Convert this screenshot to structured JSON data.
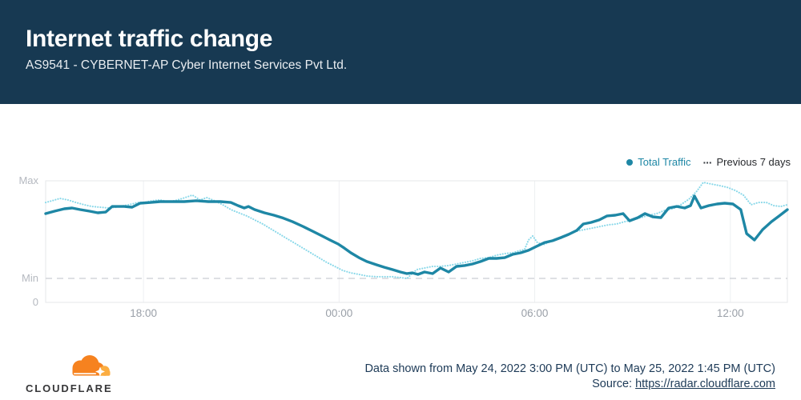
{
  "header": {
    "title": "Internet traffic change",
    "subtitle": "AS9541 - CYBERNET-AP Cyber Internet Services Pvt Ltd.",
    "background_color": "#173952"
  },
  "legend": {
    "total_traffic": {
      "label": "Total Traffic",
      "color": "#1e87a5",
      "marker": "dot"
    },
    "previous_7_days": {
      "label": "Previous 7 days",
      "color": "#3c3f45",
      "marker_glyph": "···"
    }
  },
  "chart_data": {
    "type": "line",
    "y_axis": {
      "max_label": "Max",
      "min_label": "Min",
      "zero_label": "0",
      "scale": "relative traffic, 0 to Max",
      "min_level": 0.197
    },
    "x_axis": {
      "duration_hours": 22.75,
      "ticks": [
        {
          "hour": 3,
          "label": "18:00"
        },
        {
          "hour": 9,
          "label": "00:00"
        },
        {
          "hour": 15,
          "label": "06:00"
        },
        {
          "hour": 21,
          "label": "12:00"
        }
      ]
    },
    "series": [
      {
        "name": "Previous 7 days",
        "style": "dotted",
        "color": "#89d8e9",
        "points": [
          [
            0,
            0.822
          ],
          [
            0.2,
            0.836
          ],
          [
            0.44,
            0.855
          ],
          [
            0.69,
            0.842
          ],
          [
            0.93,
            0.822
          ],
          [
            1.18,
            0.803
          ],
          [
            1.42,
            0.789
          ],
          [
            1.67,
            0.783
          ],
          [
            1.92,
            0.776
          ],
          [
            2.16,
            0.783
          ],
          [
            2.41,
            0.796
          ],
          [
            2.65,
            0.809
          ],
          [
            2.83,
            0.822
          ],
          [
            3.02,
            0.822
          ],
          [
            3.27,
            0.836
          ],
          [
            3.51,
            0.842
          ],
          [
            3.76,
            0.829
          ],
          [
            3.96,
            0.836
          ],
          [
            4.2,
            0.855
          ],
          [
            4.5,
            0.882
          ],
          [
            4.74,
            0.842
          ],
          [
            4.94,
            0.862
          ],
          [
            5.18,
            0.836
          ],
          [
            5.43,
            0.803
          ],
          [
            5.68,
            0.763
          ],
          [
            5.92,
            0.737
          ],
          [
            6.17,
            0.711
          ],
          [
            6.41,
            0.678
          ],
          [
            6.66,
            0.645
          ],
          [
            6.9,
            0.605
          ],
          [
            7.15,
            0.566
          ],
          [
            7.39,
            0.526
          ],
          [
            7.64,
            0.487
          ],
          [
            7.89,
            0.447
          ],
          [
            8.13,
            0.408
          ],
          [
            8.38,
            0.368
          ],
          [
            8.62,
            0.329
          ],
          [
            8.87,
            0.296
          ],
          [
            9.11,
            0.263
          ],
          [
            9.36,
            0.243
          ],
          [
            9.61,
            0.23
          ],
          [
            9.85,
            0.217
          ],
          [
            10.15,
            0.211
          ],
          [
            10.39,
            0.211
          ],
          [
            10.64,
            0.211
          ],
          [
            10.88,
            0.204
          ],
          [
            11.08,
            0.197
          ],
          [
            11.38,
            0.27
          ],
          [
            11.62,
            0.283
          ],
          [
            11.87,
            0.296
          ],
          [
            12.11,
            0.296
          ],
          [
            12.36,
            0.303
          ],
          [
            12.6,
            0.316
          ],
          [
            12.85,
            0.329
          ],
          [
            13.09,
            0.342
          ],
          [
            13.34,
            0.362
          ],
          [
            13.59,
            0.368
          ],
          [
            13.83,
            0.388
          ],
          [
            14.08,
            0.401
          ],
          [
            14.32,
            0.408
          ],
          [
            14.57,
            0.428
          ],
          [
            14.69,
            0.434
          ],
          [
            14.81,
            0.513
          ],
          [
            14.94,
            0.546
          ],
          [
            15.08,
            0.493
          ],
          [
            15.26,
            0.474
          ],
          [
            15.55,
            0.507
          ],
          [
            15.8,
            0.526
          ],
          [
            16.04,
            0.566
          ],
          [
            16.29,
            0.586
          ],
          [
            16.53,
            0.599
          ],
          [
            16.78,
            0.612
          ],
          [
            17.02,
            0.625
          ],
          [
            17.27,
            0.638
          ],
          [
            17.51,
            0.645
          ],
          [
            17.76,
            0.664
          ],
          [
            18.01,
            0.678
          ],
          [
            18.25,
            0.697
          ],
          [
            18.5,
            0.717
          ],
          [
            18.74,
            0.73
          ],
          [
            18.99,
            0.757
          ],
          [
            19.23,
            0.77
          ],
          [
            19.48,
            0.803
          ],
          [
            19.73,
            0.849
          ],
          [
            19.97,
            0.914
          ],
          [
            20.17,
            0.987
          ],
          [
            20.41,
            0.974
          ],
          [
            20.66,
            0.961
          ],
          [
            20.9,
            0.947
          ],
          [
            21.15,
            0.921
          ],
          [
            21.4,
            0.882
          ],
          [
            21.64,
            0.803
          ],
          [
            21.86,
            0.822
          ],
          [
            22.11,
            0.822
          ],
          [
            22.33,
            0.796
          ],
          [
            22.55,
            0.789
          ],
          [
            22.75,
            0.803
          ]
        ]
      },
      {
        "name": "Total Traffic",
        "style": "solid",
        "color": "#1e87a5",
        "points": [
          [
            0,
            0.73
          ],
          [
            0.27,
            0.75
          ],
          [
            0.57,
            0.77
          ],
          [
            0.81,
            0.776
          ],
          [
            1.06,
            0.763
          ],
          [
            1.35,
            0.75
          ],
          [
            1.6,
            0.737
          ],
          [
            1.84,
            0.743
          ],
          [
            2.04,
            0.789
          ],
          [
            2.41,
            0.789
          ],
          [
            2.65,
            0.783
          ],
          [
            2.9,
            0.816
          ],
          [
            3.22,
            0.822
          ],
          [
            3.51,
            0.829
          ],
          [
            3.88,
            0.829
          ],
          [
            4.25,
            0.829
          ],
          [
            4.62,
            0.836
          ],
          [
            4.99,
            0.829
          ],
          [
            5.36,
            0.829
          ],
          [
            5.68,
            0.822
          ],
          [
            5.9,
            0.796
          ],
          [
            6.09,
            0.776
          ],
          [
            6.22,
            0.789
          ],
          [
            6.41,
            0.763
          ],
          [
            6.71,
            0.737
          ],
          [
            7.0,
            0.717
          ],
          [
            7.25,
            0.697
          ],
          [
            7.57,
            0.664
          ],
          [
            7.89,
            0.625
          ],
          [
            8.18,
            0.586
          ],
          [
            8.48,
            0.546
          ],
          [
            8.72,
            0.513
          ],
          [
            8.97,
            0.48
          ],
          [
            9.16,
            0.447
          ],
          [
            9.36,
            0.408
          ],
          [
            9.61,
            0.368
          ],
          [
            9.85,
            0.336
          ],
          [
            10.15,
            0.309
          ],
          [
            10.39,
            0.289
          ],
          [
            10.64,
            0.27
          ],
          [
            10.88,
            0.25
          ],
          [
            11.08,
            0.237
          ],
          [
            11.25,
            0.243
          ],
          [
            11.42,
            0.23
          ],
          [
            11.62,
            0.25
          ],
          [
            11.87,
            0.237
          ],
          [
            12.11,
            0.283
          ],
          [
            12.36,
            0.25
          ],
          [
            12.6,
            0.296
          ],
          [
            12.85,
            0.303
          ],
          [
            13.09,
            0.316
          ],
          [
            13.34,
            0.336
          ],
          [
            13.59,
            0.362
          ],
          [
            13.83,
            0.362
          ],
          [
            14.08,
            0.368
          ],
          [
            14.32,
            0.395
          ],
          [
            14.57,
            0.408
          ],
          [
            14.81,
            0.428
          ],
          [
            15.06,
            0.461
          ],
          [
            15.31,
            0.493
          ],
          [
            15.55,
            0.507
          ],
          [
            15.8,
            0.533
          ],
          [
            16.04,
            0.559
          ],
          [
            16.29,
            0.592
          ],
          [
            16.49,
            0.645
          ],
          [
            16.73,
            0.658
          ],
          [
            16.98,
            0.678
          ],
          [
            17.22,
            0.711
          ],
          [
            17.47,
            0.717
          ],
          [
            17.71,
            0.73
          ],
          [
            17.91,
            0.671
          ],
          [
            18.16,
            0.697
          ],
          [
            18.38,
            0.73
          ],
          [
            18.62,
            0.704
          ],
          [
            18.87,
            0.697
          ],
          [
            19.11,
            0.776
          ],
          [
            19.36,
            0.789
          ],
          [
            19.6,
            0.776
          ],
          [
            19.78,
            0.796
          ],
          [
            19.9,
            0.875
          ],
          [
            20.1,
            0.776
          ],
          [
            20.34,
            0.796
          ],
          [
            20.59,
            0.809
          ],
          [
            20.83,
            0.816
          ],
          [
            21.08,
            0.809
          ],
          [
            21.32,
            0.763
          ],
          [
            21.5,
            0.566
          ],
          [
            21.74,
            0.513
          ],
          [
            21.99,
            0.599
          ],
          [
            22.26,
            0.664
          ],
          [
            22.5,
            0.711
          ],
          [
            22.75,
            0.763
          ]
        ]
      }
    ]
  },
  "footer": {
    "data_range": "Data shown from May 24, 2022 3:00 PM (UTC) to May 25, 2022 1:45 PM (UTC)",
    "source_label": "Source:",
    "source_url": "https://radar.cloudflare.com",
    "brand": "CLOUDFLARE",
    "logo_colors": {
      "cloud_dark": "#F6821F",
      "cloud_light": "#FBAD41"
    }
  }
}
